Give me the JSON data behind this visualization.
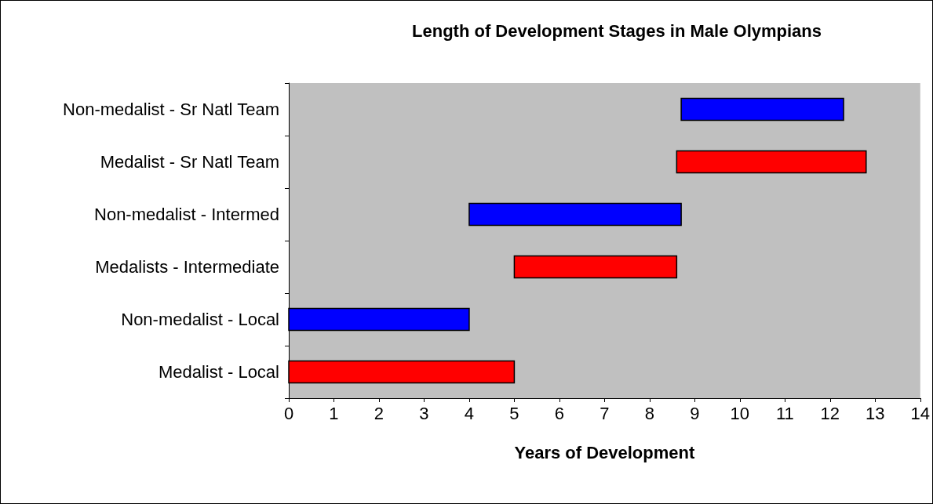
{
  "chart_data": {
    "type": "bar",
    "orientation": "horizontal",
    "title": "Length of Development Stages in Male Olympians",
    "xlabel": "Years of Development",
    "categories": [
      "Non-medalist - Sr Natl Team",
      "Medalist - Sr Natl Team",
      "Non-medalist - Intermed",
      "Medalists - Intermediate",
      "Non-medalist - Local",
      "Medalist - Local"
    ],
    "base": [
      8.7,
      8.6,
      4.0,
      5.0,
      0,
      0
    ],
    "values": [
      3.6,
      4.2,
      4.7,
      3.6,
      4.0,
      5.0
    ],
    "colors": [
      "#0000ff",
      "#ff0000",
      "#0000ff",
      "#ff0000",
      "#0000ff",
      "#ff0000"
    ],
    "xlim": [
      0,
      14
    ],
    "xticks": [
      0,
      1,
      2,
      3,
      4,
      5,
      6,
      7,
      8,
      9,
      10,
      11,
      12,
      13,
      14
    ],
    "grid": false
  }
}
